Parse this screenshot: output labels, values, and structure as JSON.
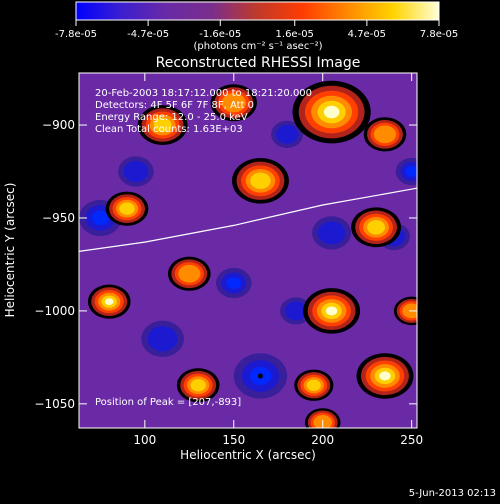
{
  "colorbar": {
    "tick_labels": [
      "-7.8e-05",
      "-4.7e-05",
      "-1.6e-05",
      "1.6e-05",
      "4.7e-05",
      "7.8e-05"
    ],
    "tick_values": [
      -7.8e-05,
      -4.7e-05,
      -1.6e-05,
      1.6e-05,
      4.7e-05,
      7.8e-05
    ],
    "range": [
      -7.8e-05,
      7.8e-05
    ],
    "units_label": "(photons cm⁻² s⁻¹ asec⁻²)",
    "colors": [
      "#0000ff",
      "#3b1fd0",
      "#6a2aa6",
      "#7a2e8c",
      "#c03a2a",
      "#ff3c00",
      "#ff8a00",
      "#ffd400",
      "#ffffd8"
    ]
  },
  "chart_data": {
    "type": "heatmap",
    "title": "Reconstructed RHESSI Image",
    "xlabel": "Heliocentric X (arcsec)",
    "ylabel": "Heliocentric Y (arcsec)",
    "xlim": [
      63,
      253
    ],
    "ylim": [
      -1063,
      -872
    ],
    "x_ticks": [
      100,
      150,
      200,
      250
    ],
    "y_ticks": [
      -900,
      -950,
      -1000,
      -1050
    ],
    "x_tick_labels": [
      "100",
      "150",
      "200",
      "250"
    ],
    "y_tick_labels": [
      "−900",
      "−950",
      "−1000",
      "−1050"
    ],
    "annotations": [
      "20-Feb-2003 18:17:12.000 to 18:21:20.000",
      "Detectors: 4F 5F 6F 7F 8F, Att 0",
      "Energy Range: 12.0 - 25.0 keV",
      "Clean     Total counts: 1.63E+03"
    ],
    "peak_label": "Position of Peak = [207,-893]",
    "peak": [
      207,
      -893
    ],
    "marked_point": [
      165,
      -1035
    ],
    "limb_curve": [
      [
        63,
        -968
      ],
      [
        100,
        -963
      ],
      [
        150,
        -954
      ],
      [
        200,
        -943
      ],
      [
        253,
        -934
      ]
    ],
    "bright_sources": [
      [
        205,
        -893,
        1.0,
        22
      ],
      [
        110,
        -900,
        0.8,
        14
      ],
      [
        150,
        -888,
        0.6,
        13
      ],
      [
        235,
        -905,
        0.6,
        12
      ],
      [
        90,
        -945,
        0.7,
        12
      ],
      [
        165,
        -930,
        0.8,
        16
      ],
      [
        230,
        -955,
        0.8,
        14
      ],
      [
        80,
        -995,
        0.9,
        12
      ],
      [
        205,
        -1000,
        0.9,
        16
      ],
      [
        125,
        -980,
        0.55,
        12
      ],
      [
        130,
        -1040,
        0.7,
        12
      ],
      [
        235,
        -1035,
        0.95,
        16
      ],
      [
        200,
        -1060,
        0.6,
        10
      ],
      [
        195,
        -1040,
        0.8,
        11
      ],
      [
        250,
        -1000,
        0.6,
        10
      ]
    ],
    "dark_sources": [
      [
        75,
        -950,
        0.55,
        12
      ],
      [
        205,
        -958,
        0.45,
        11
      ],
      [
        165,
        -1035,
        0.75,
        15
      ],
      [
        180,
        -905,
        0.45,
        9
      ],
      [
        110,
        -1015,
        0.45,
        12
      ],
      [
        150,
        -985,
        0.5,
        10
      ],
      [
        240,
        -960,
        0.35,
        9
      ],
      [
        95,
        -925,
        0.4,
        10
      ],
      [
        250,
        -925,
        0.5,
        9
      ],
      [
        185,
        -1000,
        0.3,
        9
      ]
    ]
  },
  "footer": {
    "date": "5-Jun-2013 02:13"
  }
}
